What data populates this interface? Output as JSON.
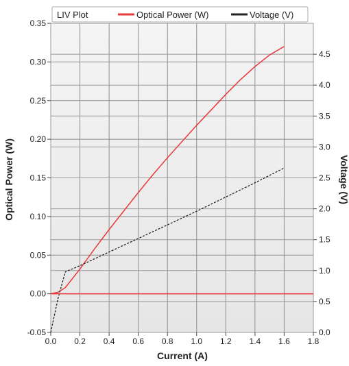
{
  "chart_data": {
    "type": "line",
    "title": "LIV Plot",
    "xlabel": "Current (A)",
    "ylabel_left": "Optical Power (W)",
    "ylabel_right": "Voltage (V)",
    "xlim": [
      0.0,
      1.8
    ],
    "ylim_left": [
      -0.05,
      0.35
    ],
    "ylim_right": [
      0.0,
      5.0
    ],
    "x_ticks": [
      "0.0",
      "0.2",
      "0.4",
      "0.6",
      "0.8",
      "1.0",
      "1.2",
      "1.4",
      "1.6",
      "1.8"
    ],
    "y_ticks_left": [
      "-0.05",
      "0.00",
      "0.05",
      "0.10",
      "0.15",
      "0.20",
      "0.25",
      "0.30",
      "0.35"
    ],
    "y_ticks_right": [
      "0.0",
      "0.5",
      "1.0",
      "1.5",
      "2.0",
      "2.5",
      "3.0",
      "3.5",
      "4.0",
      "4.5"
    ],
    "grid": true,
    "legend_position": "top",
    "series": [
      {
        "name": "Optical Power (W)",
        "axis": "left",
        "color": "#e8393b",
        "style": "solid",
        "x": [
          0.0,
          0.05,
          0.1,
          0.2,
          0.3,
          0.4,
          0.5,
          0.6,
          0.7,
          0.8,
          0.9,
          1.0,
          1.1,
          1.2,
          1.3,
          1.4,
          1.5,
          1.6
        ],
        "y": [
          0.0,
          0.002,
          0.008,
          0.032,
          0.058,
          0.083,
          0.107,
          0.131,
          0.154,
          0.176,
          0.197,
          0.218,
          0.238,
          0.258,
          0.277,
          0.294,
          0.309,
          0.32
        ]
      },
      {
        "name": "Voltage (V)",
        "axis": "right",
        "color": "#222222",
        "style": "dashed",
        "x": [
          0.0,
          0.05,
          0.1,
          0.2,
          0.4,
          0.6,
          0.8,
          1.0,
          1.2,
          1.4,
          1.6
        ],
        "y": [
          0.0,
          0.55,
          0.98,
          1.08,
          1.3,
          1.52,
          1.74,
          1.96,
          2.19,
          2.42,
          2.66
        ]
      },
      {
        "name": "",
        "axis": "left",
        "color": "#e8393b",
        "style": "solid",
        "x": [
          0.0,
          1.8
        ],
        "y": [
          0.0,
          0.0
        ]
      }
    ]
  }
}
